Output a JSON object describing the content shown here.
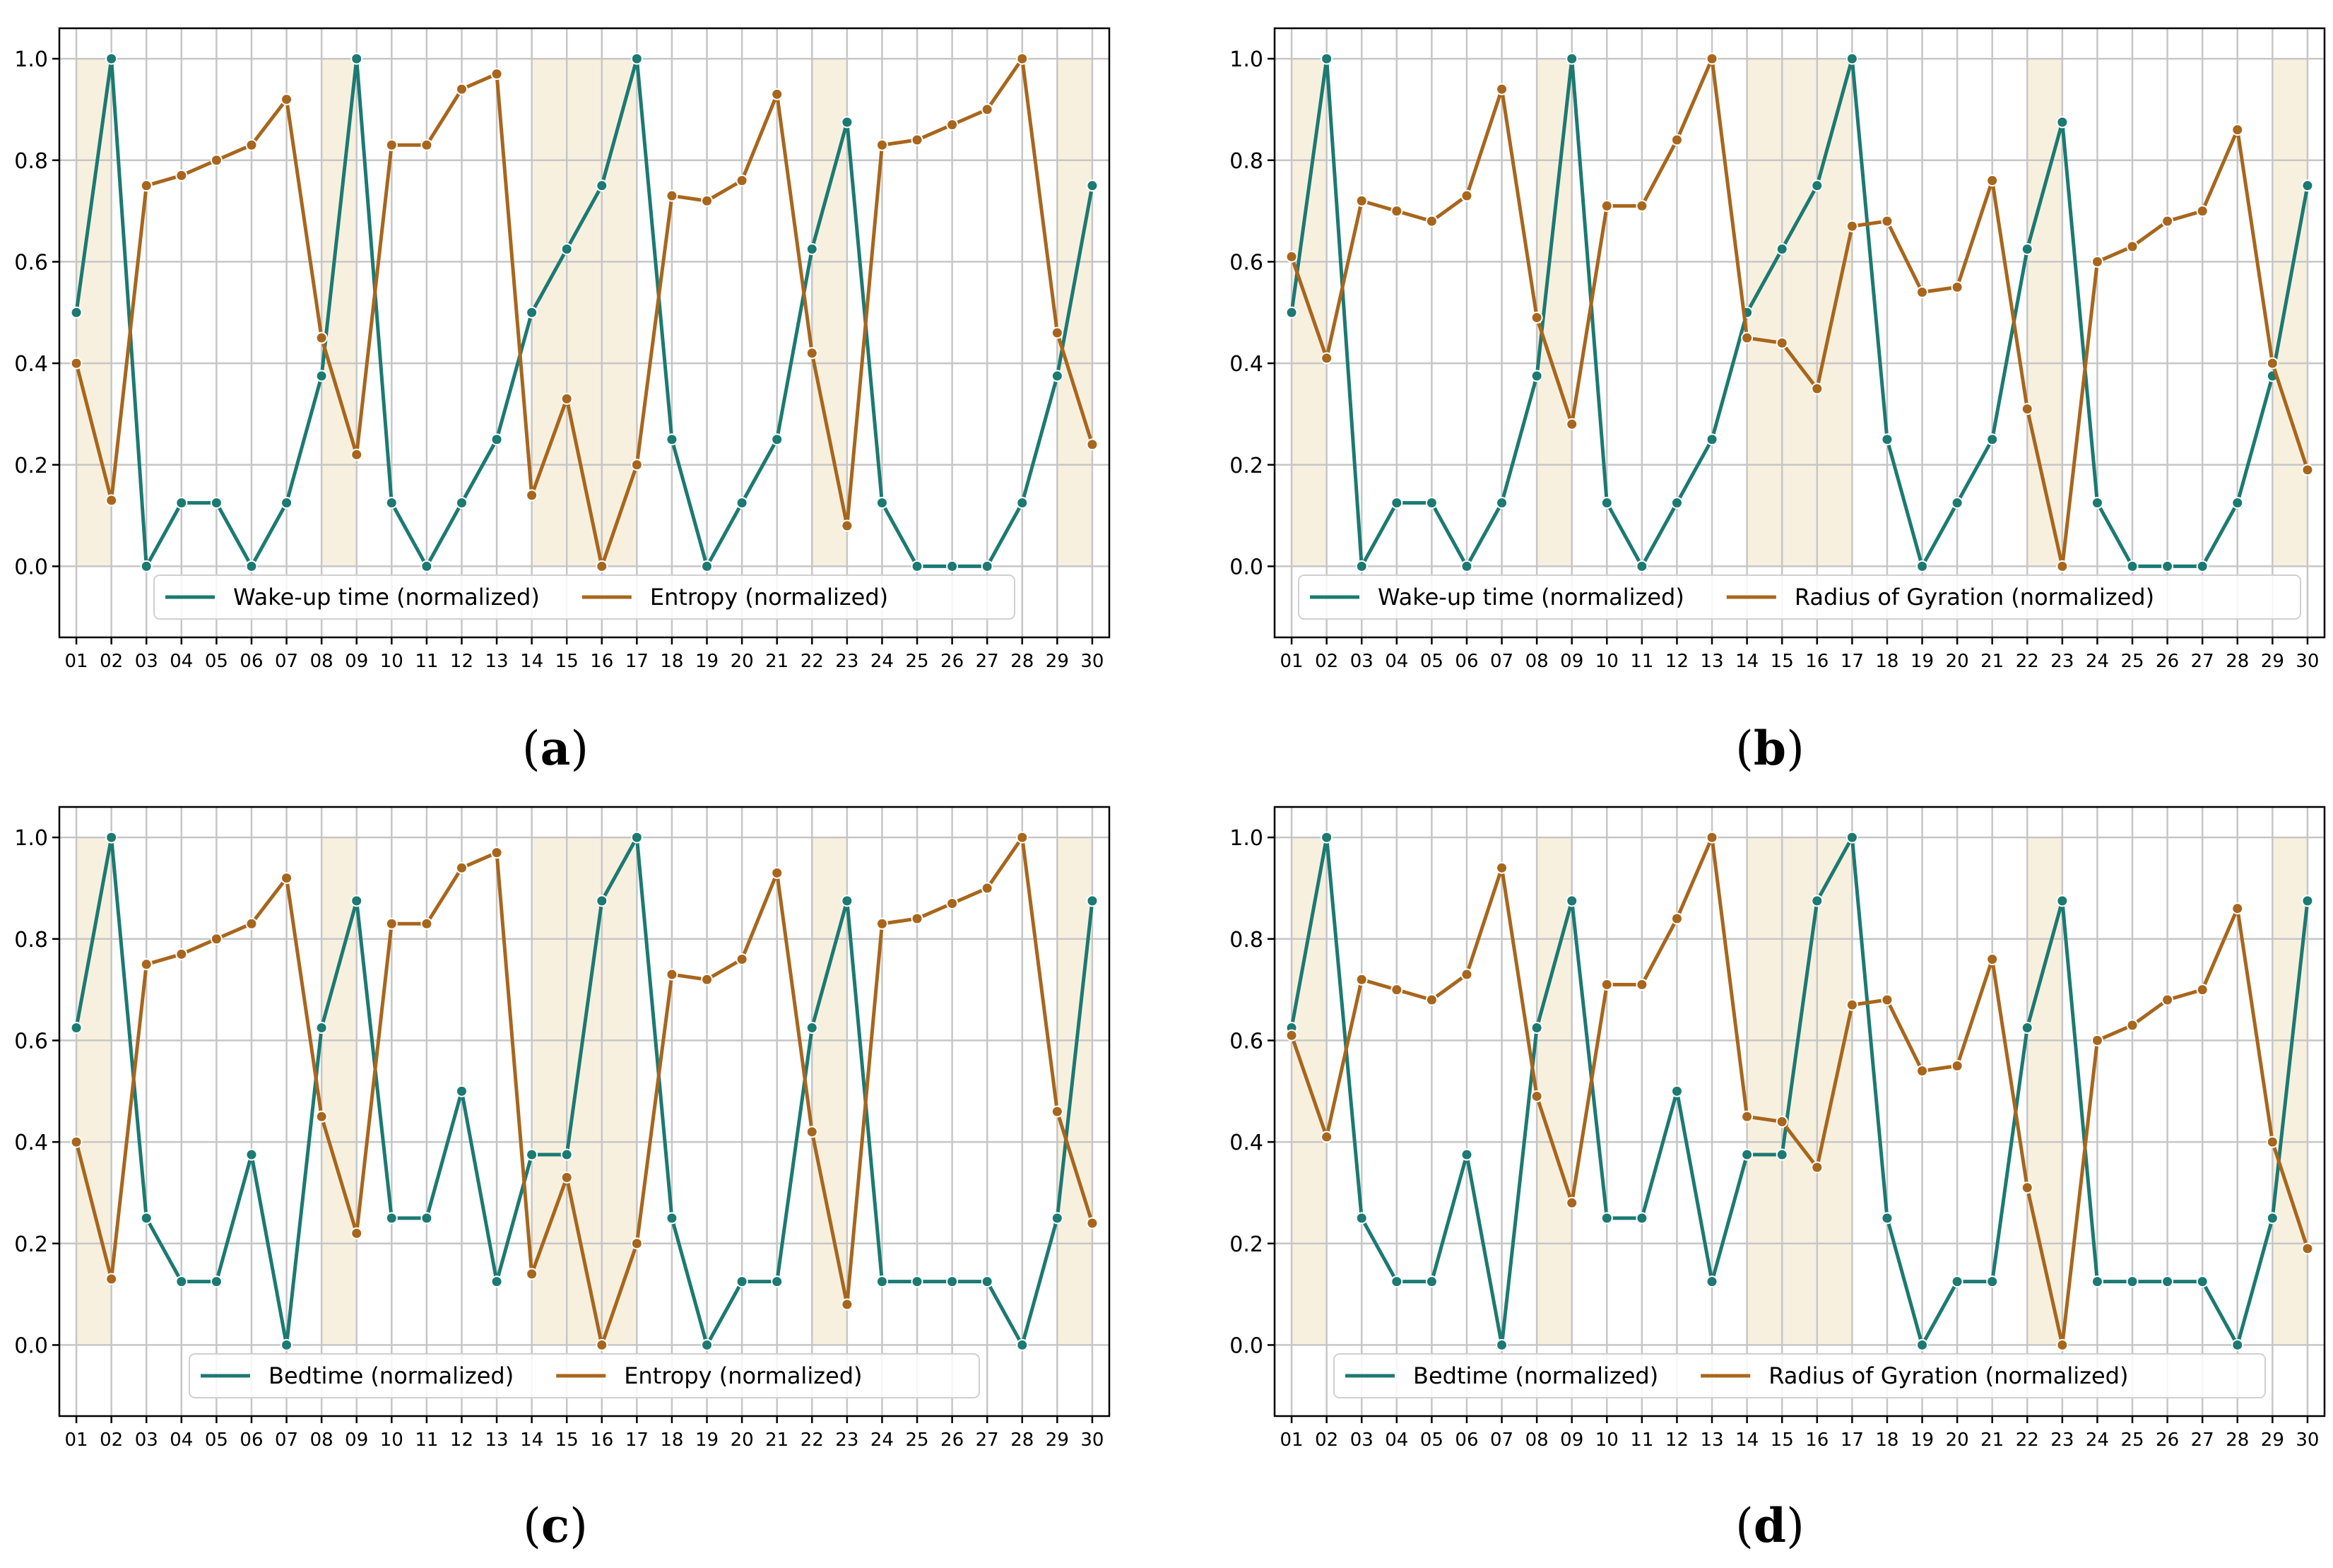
{
  "colors": {
    "teal": "#1b7a72",
    "brown": "#a8661c",
    "shade": "#f8f0df",
    "grid": "#c6c6c6"
  },
  "x_labels": [
    "01",
    "02",
    "03",
    "04",
    "05",
    "06",
    "07",
    "08",
    "09",
    "10",
    "11",
    "12",
    "13",
    "14",
    "15",
    "16",
    "17",
    "18",
    "19",
    "20",
    "21",
    "22",
    "23",
    "24",
    "25",
    "26",
    "27",
    "28",
    "29",
    "30"
  ],
  "y_ticks": [
    "0.0",
    "0.2",
    "0.4",
    "0.6",
    "0.8",
    "1.0"
  ],
  "weekend_days": [
    "01",
    "02",
    "08",
    "09",
    "14",
    "15",
    "16",
    "17",
    "22",
    "23",
    "29",
    "30"
  ],
  "chart_data": [
    {
      "type": "line",
      "caption": "(a)",
      "caption_letter": "a",
      "ylim": [
        -0.14,
        1.06
      ],
      "legend_position": "lower-center",
      "series": [
        {
          "name": "Wake-up time (normalized)",
          "color": "#1b7a72",
          "values": [
            0.5,
            1.0,
            0.0,
            0.125,
            0.125,
            0.0,
            0.125,
            0.375,
            1.0,
            0.125,
            0.0,
            0.125,
            0.25,
            0.5,
            0.625,
            0.75,
            1.0,
            0.25,
            0.0,
            0.125,
            0.25,
            0.625,
            0.875,
            0.125,
            0.0,
            0.0,
            0.0,
            0.125,
            0.375,
            0.75
          ]
        },
        {
          "name": "Entropy (normalized)",
          "color": "#a8661c",
          "values": [
            0.4,
            0.13,
            0.75,
            0.77,
            0.8,
            0.83,
            0.92,
            0.45,
            0.22,
            0.83,
            0.83,
            0.94,
            0.97,
            0.14,
            0.33,
            0.0,
            0.2,
            0.73,
            0.72,
            0.76,
            0.93,
            0.42,
            0.08,
            0.83,
            0.84,
            0.87,
            0.9,
            1.0,
            0.46,
            0.24
          ]
        }
      ]
    },
    {
      "type": "line",
      "caption": "(b)",
      "caption_letter": "b",
      "ylim": [
        -0.14,
        1.06
      ],
      "legend_position": "lower-center",
      "series": [
        {
          "name": "Wake-up time (normalized)",
          "color": "#1b7a72",
          "values": [
            0.5,
            1.0,
            0.0,
            0.125,
            0.125,
            0.0,
            0.125,
            0.375,
            1.0,
            0.125,
            0.0,
            0.125,
            0.25,
            0.5,
            0.625,
            0.75,
            1.0,
            0.25,
            0.0,
            0.125,
            0.25,
            0.625,
            0.875,
            0.125,
            0.0,
            0.0,
            0.0,
            0.125,
            0.375,
            0.75
          ]
        },
        {
          "name": "Radius of Gyration (normalized)",
          "color": "#a8661c",
          "values": [
            0.61,
            0.41,
            0.72,
            0.7,
            0.68,
            0.73,
            0.94,
            0.49,
            0.28,
            0.71,
            0.71,
            0.84,
            1.0,
            0.45,
            0.44,
            0.35,
            0.67,
            0.68,
            0.54,
            0.55,
            0.76,
            0.31,
            0.0,
            0.6,
            0.63,
            0.68,
            0.7,
            0.86,
            0.4,
            0.19
          ]
        }
      ]
    },
    {
      "type": "line",
      "caption": "(c)",
      "caption_letter": "c",
      "ylim": [
        -0.14,
        1.06
      ],
      "legend_position": "lower-center",
      "series": [
        {
          "name": "Bedtime (normalized)",
          "color": "#1b7a72",
          "values": [
            0.625,
            1.0,
            0.25,
            0.125,
            0.125,
            0.375,
            0.0,
            0.625,
            0.875,
            0.25,
            0.25,
            0.5,
            0.125,
            0.375,
            0.375,
            0.875,
            1.0,
            0.25,
            0.0,
            0.125,
            0.125,
            0.625,
            0.875,
            0.125,
            0.125,
            0.125,
            0.125,
            0.0,
            0.25,
            0.875
          ]
        },
        {
          "name": "Entropy (normalized)",
          "color": "#a8661c",
          "values": [
            0.4,
            0.13,
            0.75,
            0.77,
            0.8,
            0.83,
            0.92,
            0.45,
            0.22,
            0.83,
            0.83,
            0.94,
            0.97,
            0.14,
            0.33,
            0.0,
            0.2,
            0.73,
            0.72,
            0.76,
            0.93,
            0.42,
            0.08,
            0.83,
            0.84,
            0.87,
            0.9,
            1.0,
            0.46,
            0.24
          ]
        }
      ]
    },
    {
      "type": "line",
      "caption": "(d)",
      "caption_letter": "d",
      "ylim": [
        -0.14,
        1.06
      ],
      "legend_position": "lower-center",
      "series": [
        {
          "name": "Bedtime (normalized)",
          "color": "#1b7a72",
          "values": [
            0.625,
            1.0,
            0.25,
            0.125,
            0.125,
            0.375,
            0.0,
            0.625,
            0.875,
            0.25,
            0.25,
            0.5,
            0.125,
            0.375,
            0.375,
            0.875,
            1.0,
            0.25,
            0.0,
            0.125,
            0.125,
            0.625,
            0.875,
            0.125,
            0.125,
            0.125,
            0.125,
            0.0,
            0.25,
            0.875
          ]
        },
        {
          "name": "Radius of Gyration (normalized)",
          "color": "#a8661c",
          "values": [
            0.61,
            0.41,
            0.72,
            0.7,
            0.68,
            0.73,
            0.94,
            0.49,
            0.28,
            0.71,
            0.71,
            0.84,
            1.0,
            0.45,
            0.44,
            0.35,
            0.67,
            0.68,
            0.54,
            0.55,
            0.76,
            0.31,
            0.0,
            0.6,
            0.63,
            0.68,
            0.7,
            0.86,
            0.4,
            0.19
          ]
        }
      ]
    }
  ]
}
